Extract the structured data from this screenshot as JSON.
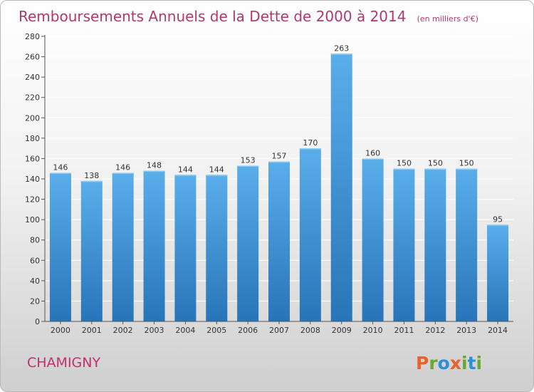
{
  "title": {
    "main": "Remboursements Annuels de la Dette de 2000 à 2014",
    "unit": "(en milliers d'€)"
  },
  "commune": "CHAMIGNY",
  "brand": {
    "logo": "Proxiti",
    "letters": [
      "P",
      "r",
      "o",
      "x",
      "i",
      "t",
      "i"
    ],
    "letter_colors": [
      "#e8632a",
      "#6aa733",
      "#2e8fd6",
      "#e8632a",
      "#6aa733",
      "#2e8fd6",
      "#6aa733"
    ]
  },
  "colors": {
    "bar_top": "#5aaeea",
    "bar_bottom": "#2874b8",
    "grid": "#ffffff",
    "axis": "#555555",
    "title": "#b0386f"
  },
  "chart_data": {
    "type": "bar",
    "title": "Remboursements Annuels de la Dette de 2000 à 2014",
    "ylabel": "",
    "xlabel": "",
    "ylim": [
      0,
      280
    ],
    "ytick_step": 20,
    "grid": true,
    "categories": [
      "2000",
      "2001",
      "2002",
      "2003",
      "2004",
      "2005",
      "2006",
      "2007",
      "2008",
      "2009",
      "2010",
      "2011",
      "2012",
      "2013",
      "2014"
    ],
    "values": [
      146,
      138,
      146,
      148,
      144,
      144,
      153,
      157,
      170,
      263,
      160,
      150,
      150,
      150,
      95
    ]
  }
}
